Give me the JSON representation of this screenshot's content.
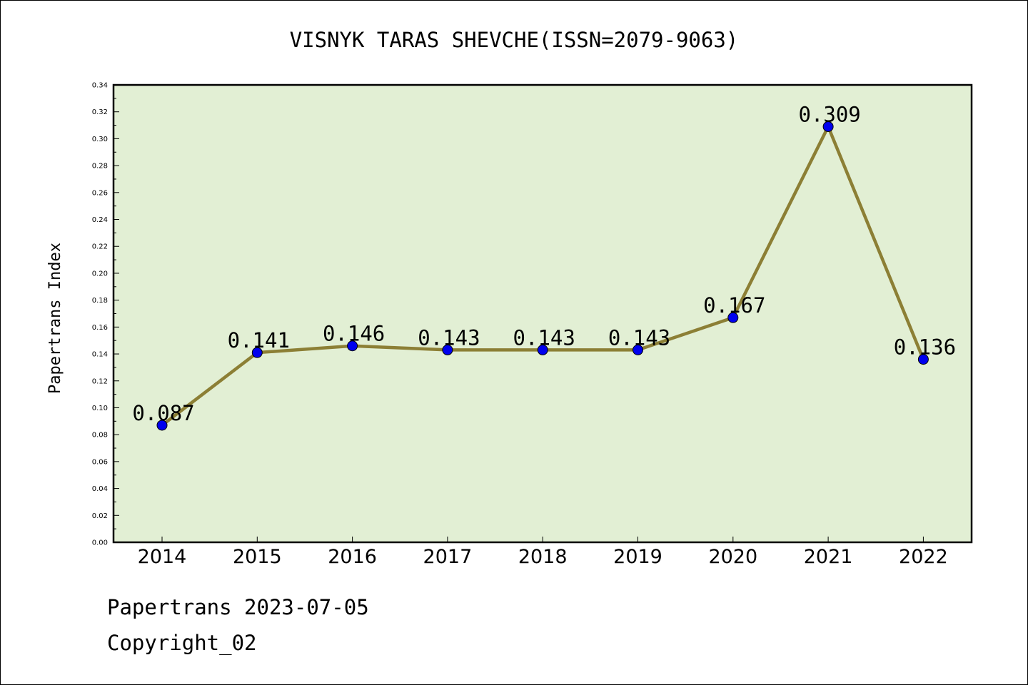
{
  "chart_data": {
    "type": "line",
    "title": "VISNYK TARAS SHEVCHE(ISSN=2079-9063)",
    "xlabel": "",
    "ylabel": "Papertrans Index",
    "categories": [
      "2014",
      "2015",
      "2016",
      "2017",
      "2018",
      "2019",
      "2020",
      "2021",
      "2022"
    ],
    "values": [
      0.087,
      0.141,
      0.146,
      0.143,
      0.143,
      0.143,
      0.167,
      0.309,
      0.136
    ],
    "data_labels": [
      "0.087",
      "0.141",
      "0.146",
      "0.143",
      "0.143",
      "0.143",
      "0.167",
      "0.309",
      "0.136"
    ],
    "ylim": [
      0,
      0.34
    ],
    "yticks": [
      "0.00",
      "0.02",
      "0.04",
      "0.06",
      "0.08",
      "0.10",
      "0.12",
      "0.14",
      "0.16",
      "0.18",
      "0.20",
      "0.22",
      "0.24",
      "0.26",
      "0.28",
      "0.30",
      "0.32",
      "0.34"
    ],
    "grid": false,
    "colors": {
      "plot_background": "#e2efd4",
      "line": "#8c7f35",
      "marker": "#0000ee"
    }
  },
  "footer": {
    "line1": "Papertrans 2023-07-05",
    "line2": "Copyright_02"
  }
}
